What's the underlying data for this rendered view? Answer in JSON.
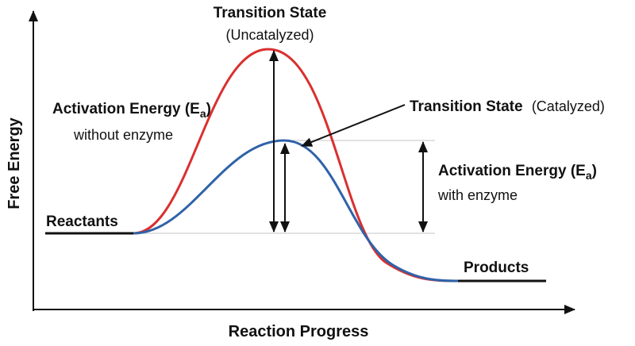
{
  "axes": {
    "y_label": "Free Energy",
    "x_label": "Reaction Progress"
  },
  "labels": {
    "ts_uncat_line1": "Transition State",
    "ts_uncat_line2": "(Uncatalyzed)",
    "ts_cat_bold": "Transition State",
    "ts_cat_paren": "(Catalyzed)",
    "ea_without_bold": "Activation Energy (E",
    "ea_without_sub": "a",
    "ea_without_close": ")",
    "ea_without_line2": "without enzyme",
    "ea_with_bold": "Activation Energy (E",
    "ea_with_sub": "a",
    "ea_with_close": ")",
    "ea_with_line2": "with enzyme",
    "reactants": "Reactants",
    "products": "Products"
  },
  "colors": {
    "uncatalyzed_curve": "#d9302f",
    "catalyzed_curve": "#2f63a8",
    "axis": "#111111",
    "reference_line": "#bbbbbb"
  }
}
